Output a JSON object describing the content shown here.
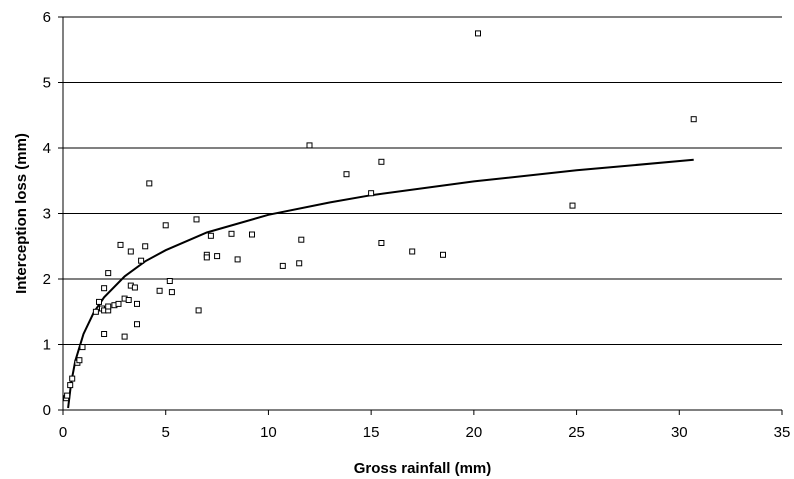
{
  "chart_data": {
    "type": "scatter",
    "title": "",
    "xlabel": "Gross rainfall (mm)",
    "ylabel": "Interception loss (mm)",
    "xlim": [
      0,
      35
    ],
    "ylim": [
      0,
      6
    ],
    "x_ticks": [
      "0",
      "5",
      "10",
      "15",
      "20",
      "25",
      "30",
      "35"
    ],
    "y_ticks": [
      "0",
      "1",
      "2",
      "3",
      "4",
      "5",
      "6"
    ],
    "grid": "horizontal",
    "legend": "none",
    "marker": "open-square",
    "series": [
      {
        "points": [
          [
            0.15,
            0.18
          ],
          [
            0.2,
            0.22
          ],
          [
            0.35,
            0.38
          ],
          [
            0.45,
            0.48
          ],
          [
            0.7,
            0.72
          ],
          [
            0.8,
            0.76
          ],
          [
            0.95,
            0.96
          ],
          [
            1.6,
            1.5
          ],
          [
            1.75,
            1.65
          ],
          [
            2.0,
            1.86
          ],
          [
            1.9,
            1.55
          ],
          [
            2.0,
            1.52
          ],
          [
            2.2,
            1.52
          ],
          [
            2.2,
            1.58
          ],
          [
            2.2,
            2.09
          ],
          [
            2.0,
            1.16
          ],
          [
            2.5,
            1.6
          ],
          [
            2.7,
            1.62
          ],
          [
            2.8,
            2.52
          ],
          [
            3.0,
            1.7
          ],
          [
            3.2,
            1.68
          ],
          [
            3.0,
            1.12
          ],
          [
            3.3,
            1.9
          ],
          [
            3.3,
            2.42
          ],
          [
            3.5,
            1.87
          ],
          [
            3.6,
            1.62
          ],
          [
            3.6,
            1.31
          ],
          [
            3.8,
            2.28
          ],
          [
            4.0,
            2.5
          ],
          [
            4.2,
            3.46
          ],
          [
            4.7,
            1.82
          ],
          [
            5.0,
            2.82
          ],
          [
            5.2,
            1.97
          ],
          [
            5.3,
            1.8
          ],
          [
            6.5,
            2.91
          ],
          [
            6.6,
            1.52
          ],
          [
            7.0,
            2.37
          ],
          [
            7.0,
            2.33
          ],
          [
            7.2,
            2.66
          ],
          [
            7.5,
            2.35
          ],
          [
            8.2,
            2.69
          ],
          [
            8.5,
            2.3
          ],
          [
            9.2,
            2.68
          ],
          [
            10.7,
            2.2
          ],
          [
            11.5,
            2.24
          ],
          [
            11.6,
            2.6
          ],
          [
            12.0,
            4.04
          ],
          [
            13.8,
            3.6
          ],
          [
            15.0,
            3.31
          ],
          [
            15.5,
            3.79
          ],
          [
            15.5,
            2.55
          ],
          [
            17.0,
            2.42
          ],
          [
            18.5,
            2.37
          ],
          [
            20.2,
            5.75
          ],
          [
            24.8,
            3.12
          ],
          [
            30.7,
            4.44
          ]
        ]
      }
    ],
    "fit_curve": {
      "type": "logarithmic",
      "x": [
        0.25,
        0.4,
        0.6,
        1.0,
        1.5,
        2.0,
        3.0,
        4.0,
        5.0,
        7.0,
        10.0,
        13.0,
        15.0,
        20.0,
        25.0,
        30.7
      ],
      "y": [
        0.03,
        0.42,
        0.75,
        1.16,
        1.49,
        1.72,
        2.04,
        2.27,
        2.44,
        2.71,
        2.98,
        3.17,
        3.28,
        3.49,
        3.66,
        3.82
      ]
    }
  }
}
